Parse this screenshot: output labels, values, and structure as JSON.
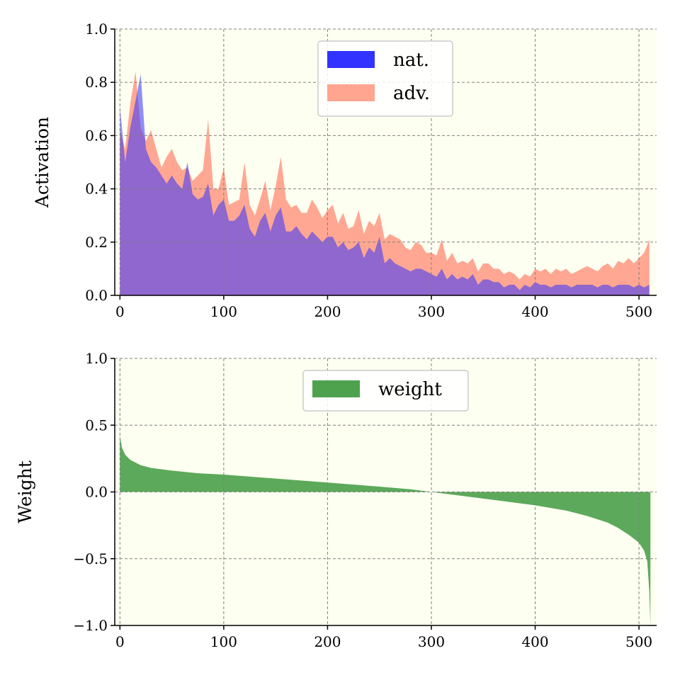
{
  "chart_data": [
    {
      "type": "area",
      "ylabel": "Activation",
      "xlabel": "",
      "xlim": [
        -5,
        517
      ],
      "ylim": [
        0.0,
        1.0
      ],
      "xticks": [
        0,
        100,
        200,
        300,
        400,
        500
      ],
      "yticks": [
        0.0,
        0.2,
        0.4,
        0.6,
        0.8,
        1.0
      ],
      "xtick_labels": [
        "0",
        "100",
        "200",
        "300",
        "400",
        "500"
      ],
      "ytick_labels": [
        "0.0",
        "0.2",
        "0.4",
        "0.6",
        "0.8",
        "1.0"
      ],
      "grid": true,
      "legend_position": "top-center",
      "background": "#fdfff0",
      "series": [
        {
          "name": "adv.",
          "color": "#ffa08a",
          "x": [
            0,
            5,
            10,
            15,
            20,
            25,
            30,
            35,
            40,
            45,
            50,
            55,
            60,
            65,
            70,
            75,
            80,
            85,
            90,
            95,
            100,
            105,
            110,
            115,
            120,
            125,
            130,
            135,
            140,
            145,
            150,
            155,
            160,
            165,
            170,
            175,
            180,
            185,
            190,
            195,
            200,
            205,
            210,
            215,
            220,
            225,
            230,
            235,
            240,
            245,
            250,
            255,
            260,
            265,
            270,
            275,
            280,
            285,
            290,
            295,
            300,
            305,
            310,
            315,
            320,
            325,
            330,
            335,
            340,
            345,
            350,
            355,
            360,
            365,
            370,
            375,
            380,
            385,
            390,
            395,
            400,
            405,
            410,
            415,
            420,
            425,
            430,
            435,
            440,
            445,
            450,
            455,
            460,
            465,
            470,
            475,
            480,
            485,
            490,
            495,
            500,
            505,
            510
          ],
          "values": [
            0.62,
            0.55,
            0.72,
            0.84,
            0.63,
            0.58,
            0.62,
            0.55,
            0.48,
            0.52,
            0.55,
            0.5,
            0.47,
            0.48,
            0.43,
            0.45,
            0.47,
            0.66,
            0.4,
            0.4,
            0.48,
            0.34,
            0.35,
            0.36,
            0.5,
            0.34,
            0.3,
            0.36,
            0.43,
            0.32,
            0.41,
            0.52,
            0.36,
            0.33,
            0.34,
            0.31,
            0.31,
            0.36,
            0.33,
            0.29,
            0.32,
            0.34,
            0.27,
            0.31,
            0.25,
            0.26,
            0.32,
            0.23,
            0.28,
            0.26,
            0.31,
            0.21,
            0.23,
            0.22,
            0.21,
            0.18,
            0.17,
            0.2,
            0.19,
            0.16,
            0.16,
            0.15,
            0.21,
            0.13,
            0.16,
            0.12,
            0.13,
            0.12,
            0.14,
            0.09,
            0.12,
            0.12,
            0.1,
            0.1,
            0.08,
            0.09,
            0.08,
            0.06,
            0.08,
            0.07,
            0.1,
            0.09,
            0.1,
            0.08,
            0.1,
            0.09,
            0.1,
            0.08,
            0.09,
            0.1,
            0.11,
            0.1,
            0.09,
            0.11,
            0.12,
            0.1,
            0.13,
            0.12,
            0.14,
            0.12,
            0.14,
            0.16,
            0.21
          ]
        },
        {
          "name": "nat.",
          "color": "#3333ff",
          "x": [
            0,
            5,
            10,
            15,
            20,
            25,
            30,
            35,
            40,
            45,
            50,
            55,
            60,
            65,
            70,
            75,
            80,
            85,
            90,
            95,
            100,
            105,
            110,
            115,
            120,
            125,
            130,
            135,
            140,
            145,
            150,
            155,
            160,
            165,
            170,
            175,
            180,
            185,
            190,
            195,
            200,
            205,
            210,
            215,
            220,
            225,
            230,
            235,
            240,
            245,
            250,
            255,
            260,
            265,
            270,
            275,
            280,
            285,
            290,
            295,
            300,
            305,
            310,
            315,
            320,
            325,
            330,
            335,
            340,
            345,
            350,
            355,
            360,
            365,
            370,
            375,
            380,
            385,
            390,
            395,
            400,
            405,
            410,
            415,
            420,
            425,
            430,
            435,
            440,
            445,
            450,
            455,
            460,
            465,
            470,
            475,
            480,
            485,
            490,
            495,
            500,
            505,
            510
          ],
          "values": [
            0.71,
            0.5,
            0.63,
            0.73,
            0.83,
            0.55,
            0.5,
            0.48,
            0.45,
            0.42,
            0.45,
            0.42,
            0.4,
            0.5,
            0.38,
            0.36,
            0.37,
            0.42,
            0.3,
            0.34,
            0.36,
            0.28,
            0.28,
            0.3,
            0.34,
            0.25,
            0.22,
            0.28,
            0.31,
            0.24,
            0.3,
            0.33,
            0.24,
            0.24,
            0.26,
            0.23,
            0.21,
            0.24,
            0.22,
            0.2,
            0.22,
            0.22,
            0.18,
            0.2,
            0.17,
            0.18,
            0.2,
            0.14,
            0.18,
            0.16,
            0.22,
            0.12,
            0.14,
            0.12,
            0.11,
            0.1,
            0.09,
            0.1,
            0.1,
            0.09,
            0.08,
            0.07,
            0.1,
            0.06,
            0.08,
            0.06,
            0.07,
            0.06,
            0.08,
            0.04,
            0.06,
            0.06,
            0.05,
            0.05,
            0.03,
            0.04,
            0.04,
            0.02,
            0.04,
            0.03,
            0.05,
            0.04,
            0.04,
            0.03,
            0.04,
            0.04,
            0.04,
            0.03,
            0.04,
            0.04,
            0.04,
            0.04,
            0.03,
            0.04,
            0.04,
            0.03,
            0.04,
            0.04,
            0.04,
            0.03,
            0.04,
            0.03,
            0.04
          ]
        }
      ],
      "legend": [
        {
          "label": "nat.",
          "color": "#3333ff"
        },
        {
          "label": "adv.",
          "color": "#ffa08a"
        }
      ]
    },
    {
      "type": "area",
      "ylabel": "Weight",
      "xlabel": "",
      "xlim": [
        -5,
        517
      ],
      "ylim": [
        -1.0,
        1.0
      ],
      "xticks": [
        0,
        100,
        200,
        300,
        400,
        500
      ],
      "yticks": [
        -1.0,
        -0.5,
        0.0,
        0.5,
        1.0
      ],
      "xtick_labels": [
        "0",
        "100",
        "200",
        "300",
        "400",
        "500"
      ],
      "ytick_labels": [
        "−1.0",
        "−0.5",
        "0.0",
        "0.5",
        "1.0"
      ],
      "grid": true,
      "legend_position": "top-center",
      "background": "#fdfff0",
      "series": [
        {
          "name": "weight",
          "color": "#4ea24e",
          "x": [
            0,
            2,
            5,
            10,
            20,
            30,
            50,
            75,
            100,
            150,
            200,
            250,
            280,
            300,
            320,
            350,
            400,
            430,
            450,
            470,
            480,
            490,
            500,
            505,
            508,
            510,
            511
          ],
          "values": [
            0.42,
            0.33,
            0.28,
            0.24,
            0.2,
            0.18,
            0.16,
            0.14,
            0.13,
            0.1,
            0.07,
            0.04,
            0.02,
            0.0,
            -0.02,
            -0.05,
            -0.1,
            -0.14,
            -0.18,
            -0.23,
            -0.27,
            -0.32,
            -0.38,
            -0.44,
            -0.52,
            -0.75,
            -1.0
          ]
        }
      ],
      "legend": [
        {
          "label": "weight",
          "color": "#4ea24e"
        }
      ]
    }
  ]
}
